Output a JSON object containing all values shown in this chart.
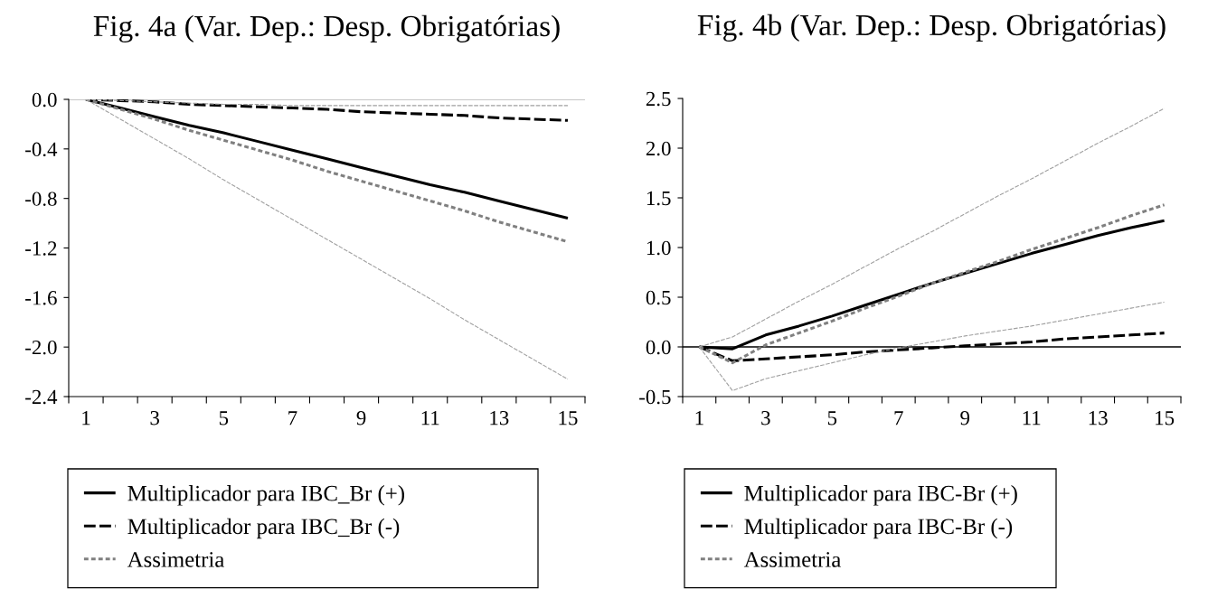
{
  "chart_data": [
    {
      "type": "line",
      "title": "Fig. 4a (Var. Dep.: Desp. Obrigatórias)",
      "categories": [
        "1",
        null,
        "3",
        null,
        "5",
        null,
        "7",
        null,
        "9",
        null,
        "11",
        null,
        "13",
        null,
        "15"
      ],
      "series": [
        {
          "name": "Multiplicador para IBC_Br (+)",
          "color": "#000000",
          "line_style": "solid",
          "values": [
            0,
            -0.07,
            -0.14,
            -0.21,
            -0.27,
            -0.34,
            -0.41,
            -0.48,
            -0.55,
            -0.62,
            -0.69,
            -0.75,
            -0.82,
            -0.89,
            -0.96
          ]
        },
        {
          "name": "Multiplicador para IBC_Br (-)",
          "color": "#000000",
          "line_style": "dashed",
          "values": [
            0,
            -0.01,
            -0.02,
            -0.04,
            -0.05,
            -0.06,
            -0.07,
            -0.08,
            -0.1,
            -0.11,
            -0.12,
            -0.13,
            -0.15,
            -0.16,
            -0.17
          ]
        },
        {
          "name": "Assimetria",
          "color": "#808080",
          "line_style": "dotted",
          "values": [
            0,
            -0.08,
            -0.16,
            -0.25,
            -0.33,
            -0.41,
            -0.49,
            -0.58,
            -0.66,
            -0.74,
            -0.82,
            -0.9,
            -0.99,
            -1.07,
            -1.15
          ]
        },
        {
          "color": "#a0a0a0",
          "line_style": "dashed",
          "values": [
            0,
            -0.01,
            -0.02,
            -0.03,
            -0.04,
            -0.04,
            -0.05,
            -0.05,
            -0.05,
            -0.05,
            -0.05,
            -0.05,
            -0.05,
            -0.05,
            -0.05
          ]
        },
        {
          "color": "#a0a0a0",
          "line_style": "dashed",
          "values": [
            0,
            -0.16,
            -0.32,
            -0.48,
            -0.65,
            -0.81,
            -0.97,
            -1.13,
            -1.29,
            -1.45,
            -1.61,
            -1.78,
            -1.94,
            -2.1,
            -2.26
          ]
        }
      ],
      "ylim": [
        -2.4,
        0
      ],
      "yticks": [
        {
          "value": 0,
          "label": "0.0"
        },
        {
          "value": -0.4,
          "label": "-0.4"
        },
        {
          "value": -0.8,
          "label": "-0.8"
        },
        {
          "value": -1.2,
          "label": "-1.2"
        },
        {
          "value": -1.6,
          "label": "-1.6"
        },
        {
          "value": -2.0,
          "label": "-2.0"
        },
        {
          "value": -2.4,
          "label": "-2.4"
        }
      ],
      "ref_lines": [
        {
          "axis": "y",
          "value": 0,
          "color": "#909090"
        }
      ],
      "legend": "bottom"
    },
    {
      "type": "line",
      "title": "Fig. 4b (Var. Dep.: Desp. Obrigatórias)",
      "categories": [
        "1",
        null,
        "3",
        null,
        "5",
        null,
        "7",
        null,
        "9",
        null,
        "11",
        null,
        "13",
        null,
        "15"
      ],
      "series": [
        {
          "name": "Multiplicador para IBC-Br (+)",
          "color": "#000000",
          "line_style": "solid",
          "values": [
            0,
            -0.02,
            0.12,
            0.21,
            0.31,
            0.42,
            0.53,
            0.64,
            0.74,
            0.84,
            0.94,
            1.03,
            1.12,
            1.2,
            1.27
          ]
        },
        {
          "name": "Multiplicador para IBC-Br (-)",
          "color": "#000000",
          "line_style": "dashed",
          "values": [
            0,
            -0.14,
            -0.12,
            -0.1,
            -0.08,
            -0.05,
            -0.03,
            -0.01,
            0.01,
            0.03,
            0.05,
            0.08,
            0.1,
            0.12,
            0.14
          ]
        },
        {
          "name": "Assimetria",
          "color": "#808080",
          "line_style": "dotted",
          "values": [
            0,
            -0.16,
            0.02,
            0.14,
            0.26,
            0.39,
            0.51,
            0.64,
            0.75,
            0.86,
            0.98,
            1.09,
            1.2,
            1.32,
            1.43
          ]
        },
        {
          "color": "#a0a0a0",
          "line_style": "dashed",
          "values": [
            0,
            0.1,
            0.28,
            0.46,
            0.63,
            0.81,
            0.99,
            1.16,
            1.34,
            1.52,
            1.69,
            1.87,
            2.05,
            2.22,
            2.4
          ]
        },
        {
          "color": "#a0a0a0",
          "line_style": "dashed",
          "values": [
            0,
            -0.44,
            -0.32,
            -0.24,
            -0.16,
            -0.08,
            -0.01,
            0.05,
            0.11,
            0.16,
            0.21,
            0.27,
            0.33,
            0.39,
            0.45
          ]
        }
      ],
      "ylim": [
        -0.5,
        2.5
      ],
      "yticks": [
        {
          "value": -0.5,
          "label": "-0.5"
        },
        {
          "value": 0,
          "label": "0.0"
        },
        {
          "value": 0.5,
          "label": "0.5"
        },
        {
          "value": 1.0,
          "label": "1.0"
        },
        {
          "value": 1.5,
          "label": "1.5"
        },
        {
          "value": 2.0,
          "label": "2.0"
        },
        {
          "value": 2.5,
          "label": "2.5"
        }
      ],
      "ref_lines": [
        {
          "axis": "y",
          "value": 0,
          "color": "#000000"
        }
      ],
      "legend": "bottom"
    }
  ]
}
